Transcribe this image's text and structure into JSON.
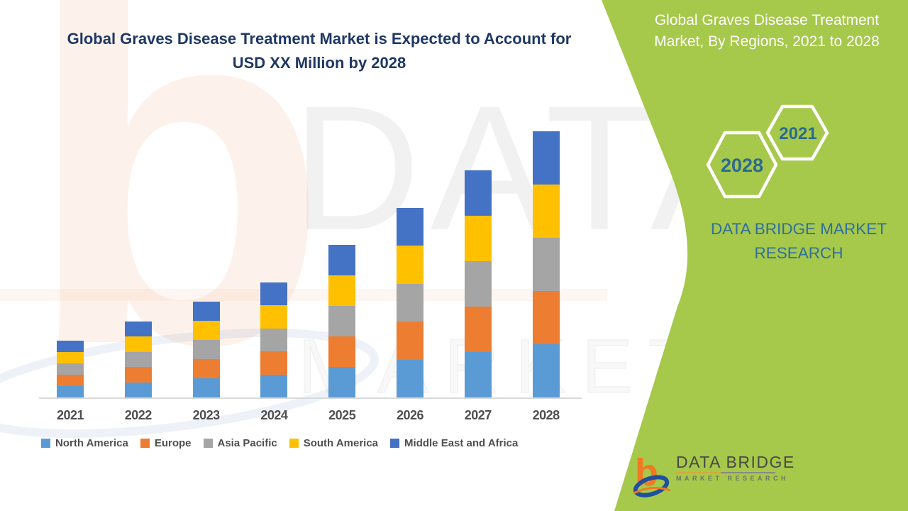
{
  "header": {
    "title_line1": "Global Graves Disease Treatment Market is Expected to Account for",
    "title_line2": "USD XX Million by 2028",
    "title_color": "#1F3864"
  },
  "chart_data": {
    "type": "bar",
    "stacked": true,
    "title": "Global Graves Disease Treatment Market is Expected to Account for USD XX Million by 2028",
    "categories": [
      "2021",
      "2022",
      "2023",
      "2024",
      "2025",
      "2026",
      "2027",
      "2028"
    ],
    "series": [
      {
        "name": "North America",
        "color": "#5B9BD5",
        "values": [
          16,
          21.5,
          27,
          32.5,
          43,
          53.5,
          64,
          75
        ]
      },
      {
        "name": "Europe",
        "color": "#ED7D31",
        "values": [
          16,
          21.5,
          27,
          32.5,
          43,
          53.5,
          64,
          75
        ]
      },
      {
        "name": "Asia Pacific",
        "color": "#A5A5A5",
        "values": [
          16,
          21.5,
          27,
          32.5,
          43,
          53.5,
          64,
          75
        ]
      },
      {
        "name": "South America",
        "color": "#FFC000",
        "values": [
          16,
          21.5,
          27,
          32.5,
          43,
          53.5,
          64,
          75
        ]
      },
      {
        "name": "Middle East and Africa",
        "color": "#4472C4",
        "values": [
          16,
          21.5,
          27,
          32.5,
          43,
          53.5,
          64,
          75
        ]
      }
    ],
    "stack_order_bottom_to_top": [
      "North America",
      "Europe",
      "Asia Pacific",
      "South America",
      "Middle East and Africa"
    ],
    "xlabel": "",
    "ylabel": "",
    "y_axis_shown": false,
    "grid": false,
    "legend_position": "bottom",
    "value_note": "No y-axis shown; values are relative units (market size shown as USD XX Million placeholder)"
  },
  "side_panel": {
    "bg_color": "#A6C84B",
    "title_line1": "Global Graves Disease Treatment",
    "title_line2": "Market, By Regions, 2021 to 2028",
    "hexagon_back_year": "2028",
    "hexagon_front_year": "2021",
    "hexagon_text_color": "#2B6A90",
    "brand_line1": "DATA BRIDGE MARKET",
    "brand_line2": "RESEARCH",
    "brand_color": "#2F6F9E"
  },
  "watermarks": {
    "corner_glyph": "b",
    "chart_text": "DATA B",
    "lower_text": "MARKET RES"
  },
  "footer_logo": {
    "name_line": "DATA BRIDGE",
    "sub_line": "MARKET RESEARCH",
    "orange": "#F07921",
    "blue": "#1F4F9E"
  }
}
